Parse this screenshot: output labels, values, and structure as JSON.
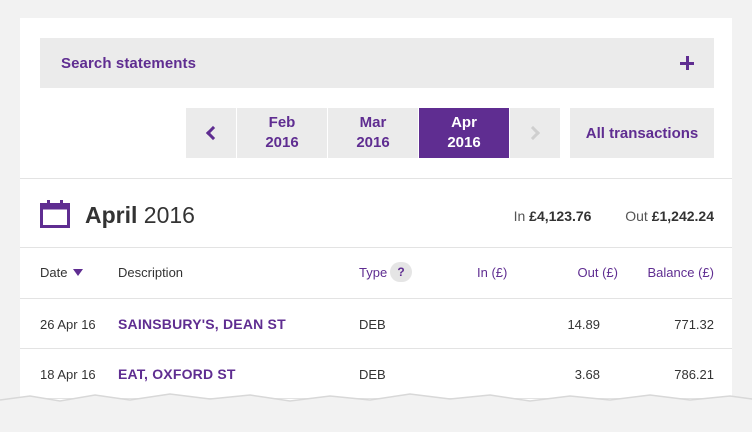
{
  "search": {
    "label": "Search statements"
  },
  "months": [
    {
      "month": "Feb",
      "year": "2016"
    },
    {
      "month": "Mar",
      "year": "2016"
    },
    {
      "month": "Apr",
      "year": "2016"
    }
  ],
  "active_month_index": 2,
  "all_transactions_label": "All transactions",
  "heading": {
    "month": "April",
    "year": "2016"
  },
  "totals": {
    "in_label": "In",
    "in_value": "£4,123.76",
    "out_label": "Out",
    "out_value": "£1,242.24"
  },
  "table": {
    "headers": {
      "date": "Date",
      "description": "Description",
      "type": "Type",
      "help": "?",
      "in": "In (£)",
      "out": "Out (£)",
      "balance": "Balance (£)"
    },
    "rows": [
      {
        "date": "26 Apr 16",
        "description": "SAINSBURY'S, DEAN ST",
        "type": "DEB",
        "in": "",
        "out": "14.89",
        "balance": "771.32"
      },
      {
        "date": "18 Apr 16",
        "description": "EAT, OXFORD ST",
        "type": "DEB",
        "in": "",
        "out": "3.68",
        "balance": "786.21"
      }
    ]
  },
  "colors": {
    "brand": "#5f2d91",
    "panel": "#ebebeb"
  }
}
